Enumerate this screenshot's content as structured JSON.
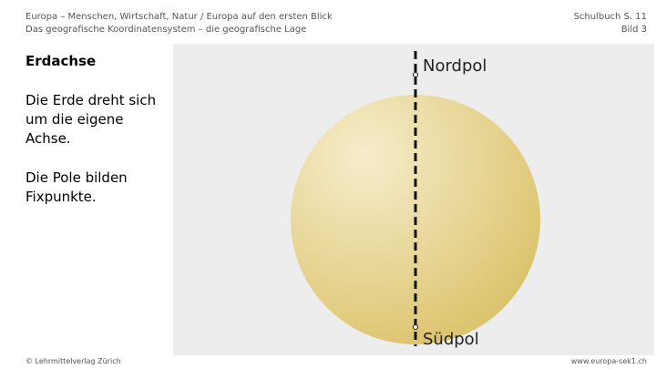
{
  "header": {
    "title": "Europa – Menschen, Wirtschaft, Natur / Europa auf den ersten Blick",
    "subtitle": "Das geografische Koordinatensystem – die geografische Lage",
    "book_ref": "Schulbuch S. 11",
    "image_ref": "Bild 3"
  },
  "content": {
    "heading": "Erdachse",
    "paragraphs": [
      "Die Erde dreht sich um die eigene Achse.",
      "Die Pole bilden Fixpunkte."
    ]
  },
  "figure": {
    "north_label": "Nordpol",
    "south_label": "Südpol"
  },
  "footer": {
    "copyright": "© Lehrmittelverlag Zürich",
    "website": "www.europa-sek1.ch"
  }
}
